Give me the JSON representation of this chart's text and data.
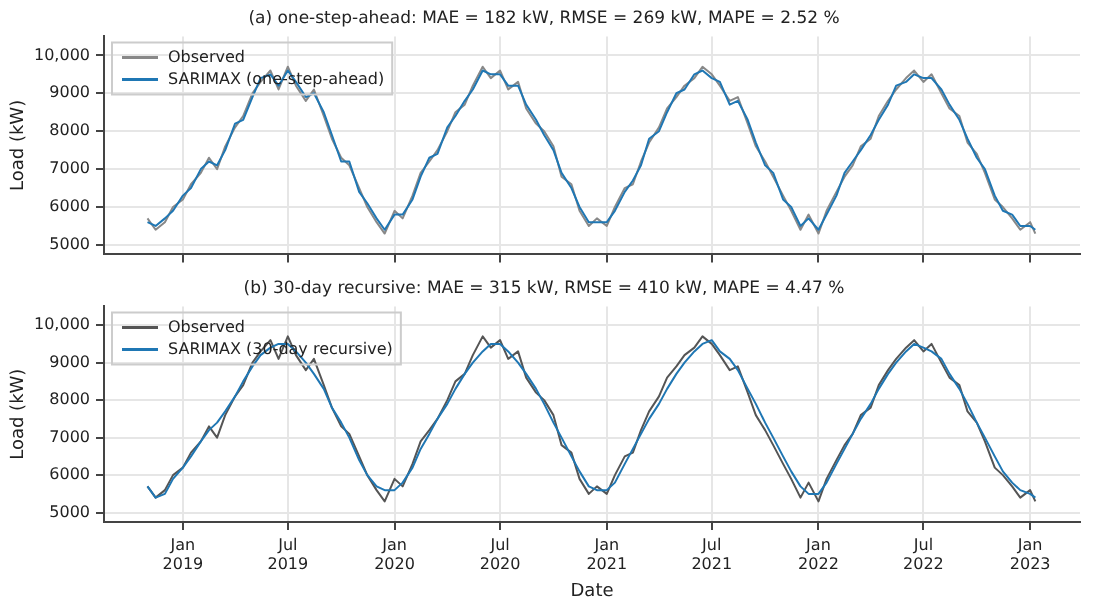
{
  "chart_data": [
    {
      "type": "line",
      "title": "(a) one-step-ahead: MAE = 182 kW, RMSE = 269 kW, MAPE = 2.52 %",
      "ylabel": "Load (kW)",
      "x": [
        "2018-11-01",
        "2018-11-15",
        "2018-12-01",
        "2018-12-15",
        "2019-01-01",
        "2019-01-15",
        "2019-02-01",
        "2019-02-15",
        "2019-03-01",
        "2019-03-15",
        "2019-04-01",
        "2019-04-15",
        "2019-05-01",
        "2019-05-15",
        "2019-06-01",
        "2019-06-15",
        "2019-07-01",
        "2019-07-15",
        "2019-08-01",
        "2019-08-15",
        "2019-09-01",
        "2019-09-15",
        "2019-10-01",
        "2019-10-15",
        "2019-11-01",
        "2019-11-15",
        "2019-12-01",
        "2019-12-15",
        "2020-01-01",
        "2020-01-15",
        "2020-02-01",
        "2020-02-15",
        "2020-03-01",
        "2020-03-15",
        "2020-04-01",
        "2020-04-15",
        "2020-05-01",
        "2020-05-15",
        "2020-06-01",
        "2020-06-15",
        "2020-07-01",
        "2020-07-15",
        "2020-08-01",
        "2020-08-15",
        "2020-09-01",
        "2020-09-15",
        "2020-10-01",
        "2020-10-15",
        "2020-11-01",
        "2020-11-15",
        "2020-12-01",
        "2020-12-15",
        "2021-01-01",
        "2021-01-15",
        "2021-02-01",
        "2021-02-15",
        "2021-03-01",
        "2021-03-15",
        "2021-04-01",
        "2021-04-15",
        "2021-05-01",
        "2021-05-15",
        "2021-06-01",
        "2021-06-15",
        "2021-07-01",
        "2021-07-15",
        "2021-08-01",
        "2021-08-15",
        "2021-09-01",
        "2021-09-15",
        "2021-10-01",
        "2021-10-15",
        "2021-11-01",
        "2021-11-15",
        "2021-12-01",
        "2021-12-15",
        "2022-01-01",
        "2022-01-15",
        "2022-02-01",
        "2022-02-15",
        "2022-03-01",
        "2022-03-15",
        "2022-04-01",
        "2022-04-15",
        "2022-05-01",
        "2022-05-15",
        "2022-06-01",
        "2022-06-15",
        "2022-07-01",
        "2022-07-15",
        "2022-08-01",
        "2022-08-15",
        "2022-09-01",
        "2022-09-15",
        "2022-10-01",
        "2022-10-15",
        "2022-11-01",
        "2022-11-15",
        "2022-12-01",
        "2022-12-15",
        "2023-01-01",
        "2023-01-10"
      ],
      "series": [
        {
          "name": "Observed",
          "color": "#888888",
          "values": [
            5700,
            5400,
            5600,
            6000,
            6200,
            6600,
            6900,
            7300,
            7000,
            7600,
            8100,
            8400,
            9000,
            9300,
            9600,
            9100,
            9700,
            9200,
            8800,
            9100,
            8400,
            7800,
            7300,
            7100,
            6500,
            6000,
            5600,
            5300,
            5900,
            5700,
            6300,
            6900,
            7200,
            7500,
            8000,
            8500,
            8700,
            9200,
            9700,
            9400,
            9600,
            9100,
            9300,
            8600,
            8200,
            8000,
            7600,
            6800,
            6600,
            5900,
            5500,
            5700,
            5500,
            6000,
            6500,
            6600,
            7200,
            7700,
            8100,
            8600,
            8900,
            9200,
            9400,
            9700,
            9500,
            9200,
            8800,
            8900,
            8200,
            7600,
            7200,
            6800,
            6300,
            5900,
            5400,
            5800,
            5300,
            5900,
            6400,
            6800,
            7100,
            7600,
            7800,
            8400,
            8800,
            9100,
            9400,
            9600,
            9300,
            9500,
            9000,
            8600,
            8400,
            7700,
            7400,
            6900,
            6200,
            6000,
            5700,
            5400,
            5600,
            5300
          ]
        },
        {
          "name": "SARIMAX (one-step-ahead)",
          "color": "#1f77b4",
          "values": [
            5600,
            5500,
            5700,
            5900,
            6300,
            6500,
            7000,
            7200,
            7100,
            7500,
            8200,
            8300,
            8900,
            9400,
            9500,
            9200,
            9600,
            9300,
            8900,
            9000,
            8500,
            7900,
            7200,
            7200,
            6400,
            6100,
            5700,
            5400,
            5800,
            5800,
            6200,
            6800,
            7300,
            7400,
            8100,
            8400,
            8800,
            9100,
            9600,
            9500,
            9500,
            9200,
            9200,
            8700,
            8300,
            7900,
            7500,
            6900,
            6500,
            6000,
            5600,
            5600,
            5600,
            5900,
            6400,
            6700,
            7100,
            7800,
            8000,
            8500,
            9000,
            9100,
            9500,
            9600,
            9400,
            9300,
            8700,
            8800,
            8300,
            7700,
            7100,
            6900,
            6200,
            6000,
            5500,
            5700,
            5400,
            5800,
            6300,
            6900,
            7200,
            7500,
            7900,
            8300,
            8700,
            9200,
            9300,
            9500,
            9400,
            9400,
            9100,
            8700,
            8300,
            7800,
            7300,
            7000,
            6300,
            5900,
            5800,
            5500,
            5500,
            5400
          ]
        }
      ],
      "xlim": [
        "2018-08-18",
        "2023-03-28"
      ],
      "xticks": [
        {
          "value": "2019-01-01",
          "label": null
        },
        {
          "value": "2019-07-01",
          "label": null
        },
        {
          "value": "2020-01-01",
          "label": null
        },
        {
          "value": "2020-07-01",
          "label": null
        },
        {
          "value": "2021-01-01",
          "label": null
        },
        {
          "value": "2021-07-01",
          "label": null
        },
        {
          "value": "2022-01-01",
          "label": null
        },
        {
          "value": "2022-07-01",
          "label": null
        },
        {
          "value": "2023-01-01",
          "label": null
        }
      ],
      "ylim": [
        4750,
        10500
      ],
      "yticks": [
        5000,
        6000,
        7000,
        8000,
        9000,
        {
          "value": 10000,
          "label": "10,000"
        }
      ],
      "tick_labels": "y",
      "grid": true,
      "legend": "top left",
      "marker": "none",
      "line_style": "solid"
    },
    {
      "type": "line",
      "title": "(b) 30-day recursive: MAE = 315 kW, RMSE = 410 kW, MAPE = 4.47 %",
      "xlabel": "Date",
      "ylabel": "Load (kW)",
      "x": [
        "2018-11-01",
        "2018-11-15",
        "2018-12-01",
        "2018-12-15",
        "2019-01-01",
        "2019-01-15",
        "2019-02-01",
        "2019-02-15",
        "2019-03-01",
        "2019-03-15",
        "2019-04-01",
        "2019-04-15",
        "2019-05-01",
        "2019-05-15",
        "2019-06-01",
        "2019-06-15",
        "2019-07-01",
        "2019-07-15",
        "2019-08-01",
        "2019-08-15",
        "2019-09-01",
        "2019-09-15",
        "2019-10-01",
        "2019-10-15",
        "2019-11-01",
        "2019-11-15",
        "2019-12-01",
        "2019-12-15",
        "2020-01-01",
        "2020-01-15",
        "2020-02-01",
        "2020-02-15",
        "2020-03-01",
        "2020-03-15",
        "2020-04-01",
        "2020-04-15",
        "2020-05-01",
        "2020-05-15",
        "2020-06-01",
        "2020-06-15",
        "2020-07-01",
        "2020-07-15",
        "2020-08-01",
        "2020-08-15",
        "2020-09-01",
        "2020-09-15",
        "2020-10-01",
        "2020-10-15",
        "2020-11-01",
        "2020-11-15",
        "2020-12-01",
        "2020-12-15",
        "2021-01-01",
        "2021-01-15",
        "2021-02-01",
        "2021-02-15",
        "2021-03-01",
        "2021-03-15",
        "2021-04-01",
        "2021-04-15",
        "2021-05-01",
        "2021-05-15",
        "2021-06-01",
        "2021-06-15",
        "2021-07-01",
        "2021-07-15",
        "2021-08-01",
        "2021-08-15",
        "2021-09-01",
        "2021-09-15",
        "2021-10-01",
        "2021-10-15",
        "2021-11-01",
        "2021-11-15",
        "2021-12-01",
        "2021-12-15",
        "2022-01-01",
        "2022-01-15",
        "2022-02-01",
        "2022-02-15",
        "2022-03-01",
        "2022-03-15",
        "2022-04-01",
        "2022-04-15",
        "2022-05-01",
        "2022-05-15",
        "2022-06-01",
        "2022-06-15",
        "2022-07-01",
        "2022-07-15",
        "2022-08-01",
        "2022-08-15",
        "2022-09-01",
        "2022-09-15",
        "2022-10-01",
        "2022-10-15",
        "2022-11-01",
        "2022-11-15",
        "2022-12-01",
        "2022-12-15",
        "2023-01-01",
        "2023-01-10"
      ],
      "series": [
        {
          "name": "Observed",
          "color": "#555555",
          "values": [
            5700,
            5400,
            5600,
            6000,
            6200,
            6600,
            6900,
            7300,
            7000,
            7600,
            8100,
            8400,
            9000,
            9300,
            9600,
            9100,
            9700,
            9200,
            8800,
            9100,
            8400,
            7800,
            7300,
            7100,
            6500,
            6000,
            5600,
            5300,
            5900,
            5700,
            6300,
            6900,
            7200,
            7500,
            8000,
            8500,
            8700,
            9200,
            9700,
            9400,
            9600,
            9100,
            9300,
            8600,
            8200,
            8000,
            7600,
            6800,
            6600,
            5900,
            5500,
            5700,
            5500,
            6000,
            6500,
            6600,
            7200,
            7700,
            8100,
            8600,
            8900,
            9200,
            9400,
            9700,
            9500,
            9200,
            8800,
            8900,
            8200,
            7600,
            7200,
            6800,
            6300,
            5900,
            5400,
            5800,
            5300,
            5900,
            6400,
            6800,
            7100,
            7600,
            7800,
            8400,
            8800,
            9100,
            9400,
            9600,
            9300,
            9500,
            9000,
            8600,
            8400,
            7700,
            7400,
            6900,
            6200,
            6000,
            5700,
            5400,
            5600,
            5300
          ]
        },
        {
          "name": "SARIMAX (30-day recursive)",
          "color": "#1f77b4",
          "values": [
            5700,
            5400,
            5500,
            5900,
            6200,
            6500,
            6900,
            7200,
            7400,
            7700,
            8100,
            8500,
            8900,
            9200,
            9400,
            9500,
            9500,
            9300,
            9000,
            8700,
            8300,
            7800,
            7400,
            7000,
            6400,
            6000,
            5700,
            5600,
            5600,
            5800,
            6200,
            6700,
            7100,
            7500,
            7900,
            8300,
            8700,
            9000,
            9300,
            9500,
            9500,
            9300,
            9000,
            8700,
            8300,
            7900,
            7400,
            7000,
            6500,
            6100,
            5700,
            5600,
            5600,
            5800,
            6300,
            6700,
            7100,
            7500,
            7900,
            8300,
            8700,
            9000,
            9300,
            9500,
            9600,
            9300,
            9100,
            8800,
            8300,
            7900,
            7400,
            7000,
            6500,
            6100,
            5700,
            5500,
            5500,
            5800,
            6300,
            6700,
            7100,
            7500,
            7900,
            8300,
            8700,
            9000,
            9300,
            9500,
            9400,
            9300,
            9100,
            8700,
            8300,
            7900,
            7400,
            7000,
            6500,
            6100,
            5800,
            5600,
            5500,
            5400
          ]
        }
      ],
      "xlim": [
        "2018-08-18",
        "2023-03-28"
      ],
      "xticks": [
        {
          "value": "2019-01-01",
          "label": "Jan 2019"
        },
        {
          "value": "2019-07-01",
          "label": "Jul 2019"
        },
        {
          "value": "2020-01-01",
          "label": "Jan 2020"
        },
        {
          "value": "2020-07-01",
          "label": "Jul 2020"
        },
        {
          "value": "2021-01-01",
          "label": "Jan 2021"
        },
        {
          "value": "2021-07-01",
          "label": "Jul 2021"
        },
        {
          "value": "2022-01-01",
          "label": "Jan 2022"
        },
        {
          "value": "2022-07-01",
          "label": "Jul 2022"
        },
        {
          "value": "2023-01-01",
          "label": "Jan 2023"
        }
      ],
      "ylim": [
        4750,
        10500
      ],
      "yticks": [
        5000,
        6000,
        7000,
        8000,
        9000,
        {
          "value": 10000,
          "label": "10,000"
        }
      ],
      "grid": true,
      "legend": "top left",
      "marker": "none",
      "line_style": "solid"
    }
  ]
}
